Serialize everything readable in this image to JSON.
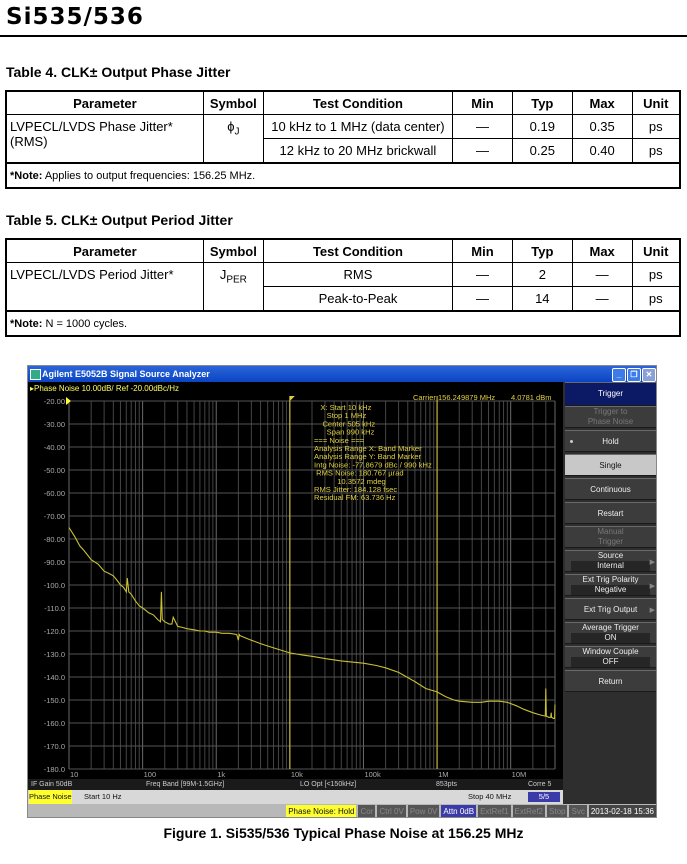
{
  "header": {
    "title": "Si535/536"
  },
  "table4": {
    "caption": "Table 4. CLK± Output Phase Jitter",
    "columns": [
      "Parameter",
      "Symbol",
      "Test Condition",
      "Min",
      "Typ",
      "Max",
      "Unit"
    ],
    "parameter": "LVPECL/LVDS Phase Jitter* (RMS)",
    "symbol": "ϕ",
    "symbol_sub": "J",
    "rows": [
      {
        "condition": "10 kHz to 1 MHz (data center)",
        "min": "—",
        "typ": "0.19",
        "max": "0.35",
        "unit": "ps"
      },
      {
        "condition": "12 kHz to 20 MHz brickwall",
        "min": "—",
        "typ": "0.25",
        "max": "0.40",
        "unit": "ps"
      }
    ],
    "note_label": "*Note:",
    "note": " Applies to output frequencies: 156.25 MHz."
  },
  "table5": {
    "caption": "Table 5. CLK± Output Period Jitter",
    "columns": [
      "Parameter",
      "Symbol",
      "Test Condition",
      "Min",
      "Typ",
      "Max",
      "Unit"
    ],
    "parameter": "LVPECL/LVDS Period Jitter*",
    "symbol": "J",
    "symbol_sub": "PER",
    "rows": [
      {
        "condition": "RMS",
        "min": "—",
        "typ": "2",
        "max": "—",
        "unit": "ps"
      },
      {
        "condition": "Peak-to-Peak",
        "min": "—",
        "typ": "14",
        "max": "—",
        "unit": "ps"
      }
    ],
    "note_label": "*Note:",
    "note": " N = 1000 cycles."
  },
  "analyzer": {
    "window_title": "Agilent E5052B Signal Source Analyzer",
    "window_buttons": [
      "minimize",
      "restore",
      "close"
    ],
    "trace_header": "Phase Noise 10.00dB/ Ref -20.00dBc/Hz",
    "carrier": "Carrier 156.249879 MHz",
    "carrier_power": "4.0781 dBm",
    "readout": [
      "   X: Start 10 kHz",
      "      Stop 1 MHz",
      "    Center 505 kHz",
      "      Span 990 kHz",
      "=== Noise ===",
      "Analysis Range X: Band Marker",
      "Analysis Range Y: Band Marker",
      "Intg Noise: -77.8679 dBc / 990 kHz",
      " RMS Noise: 180.767 µrad",
      "           10.3572 mdeg",
      "RMS Jitter: 184.128 fsec",
      "Residual FM: 63.736 Hz"
    ],
    "softkeys": [
      {
        "label": "Trigger",
        "type": "header"
      },
      {
        "label": "Trigger to",
        "label2": "Phase Noise",
        "type": "disabled"
      },
      {
        "label": "Hold",
        "type": "radio"
      },
      {
        "label": "Single",
        "type": "selected"
      },
      {
        "label": "Continuous",
        "type": "normal"
      },
      {
        "label": "Restart",
        "type": "normal"
      },
      {
        "label": "Manual",
        "label2": "Trigger",
        "type": "disabled"
      },
      {
        "label": "Source",
        "value": "Internal",
        "type": "value",
        "arrow": true
      },
      {
        "label": "Ext Trig Polarity",
        "value": "Negative",
        "type": "value",
        "arrow": true
      },
      {
        "label": "Ext Trig Output",
        "type": "normal",
        "arrow": true
      },
      {
        "label": "Average Trigger",
        "value": "ON",
        "type": "value"
      },
      {
        "label": "Window Couple",
        "value": "OFF",
        "type": "value"
      },
      {
        "label": "Return",
        "type": "normal"
      }
    ],
    "info_bar": [
      "IF Gain 50dB",
      "Freq Band [99M-1.5GHz]",
      "LO Opt [<150kHz]",
      "853pts",
      "Corre 5"
    ],
    "sweep_bar": {
      "mode": "Phase Noise",
      "start": "Start 10 Hz",
      "stop": "Stop 40 MHz",
      "page": "5/5"
    },
    "status_bar": {
      "state": "Phase Noise: Hold",
      "indicators": [
        "Cor",
        "Ctrl 0V",
        "Pow 0V",
        "Attn 0dB",
        "ExtRef1",
        "ExtRef2",
        "Stop",
        "Svc"
      ],
      "active_indicator": "Attn 0dB",
      "datetime": "2013-02-18 15:36"
    },
    "colors": {
      "trace": "#c8c030",
      "marker": "#e0d040",
      "grid": "#505050",
      "title_bar": "#1a55d0",
      "highlight": "#ffff30"
    }
  },
  "chart_data": {
    "type": "line",
    "title": "Phase Noise 10.00dB/ Ref -20.00dBc/Hz",
    "xscale": "log",
    "xlim": [
      10,
      40000000
    ],
    "ylim": [
      -180,
      -20
    ],
    "grid": true,
    "xtick_labels": [
      "10",
      "100",
      "1k",
      "10k",
      "100k",
      "1M",
      "10M"
    ],
    "xtick_values": [
      10,
      100,
      1000,
      10000,
      100000,
      1000000,
      10000000
    ],
    "ytick_labels": [
      "-20.00",
      "-30.00",
      "-40.00",
      "-50.00",
      "-60.00",
      "-70.00",
      "-80.00",
      "-90.00",
      "-100.0",
      "-110.0",
      "-120.0",
      "-130.0",
      "-140.0",
      "-150.0",
      "-160.0",
      "-170.0",
      "-180.0"
    ],
    "ytick_values": [
      -20,
      -30,
      -40,
      -50,
      -60,
      -70,
      -80,
      -90,
      -100,
      -110,
      -120,
      -130,
      -140,
      -150,
      -160,
      -170,
      -180
    ],
    "markers_x": [
      10000,
      1000000
    ],
    "series": [
      {
        "x": [
          10,
          12,
          14,
          16,
          20,
          25,
          30,
          35,
          40,
          45,
          50,
          55,
          60,
          62,
          65,
          70,
          80,
          90,
          100,
          110,
          120,
          140,
          160,
          175,
          180,
          185,
          200,
          230,
          250,
          260,
          300,
          350,
          400,
          500,
          600,
          700,
          800,
          1000,
          1200,
          1500,
          1900,
          2000,
          2050,
          2100,
          2500,
          3000,
          4000,
          5000,
          7000,
          10000,
          15000,
          20000,
          30000,
          50000,
          70000,
          100000,
          150000,
          200000,
          300000,
          500000,
          700000,
          1000000,
          1300000,
          1700000,
          2000000,
          3000000,
          4000000,
          5000000,
          7000000,
          9000000,
          12000000,
          15000000,
          20000000,
          25000000,
          29500000,
          30000000,
          30500000,
          33000000,
          35000000,
          35500000,
          36000000,
          38000000,
          39500000,
          40000000
        ],
        "y": [
          -75,
          -79,
          -83,
          -85,
          -89,
          -91,
          -94,
          -95,
          -96,
          -98,
          -100,
          -101,
          -103,
          -97,
          -103,
          -104,
          -107,
          -109,
          -110,
          -111,
          -112,
          -113,
          -115,
          -116,
          -103,
          -115,
          -116,
          -117,
          -117,
          -114,
          -118,
          -118.5,
          -119,
          -119.5,
          -120,
          -120,
          -120.5,
          -120.5,
          -121,
          -121,
          -121.5,
          -124,
          -121.5,
          -122,
          -123,
          -124,
          -125.5,
          -126.5,
          -128,
          -129.5,
          -130.5,
          -131,
          -132,
          -133,
          -133.5,
          -134,
          -135,
          -136,
          -138,
          -142,
          -145,
          -146.5,
          -148.5,
          -150,
          -150.5,
          -151,
          -151,
          -150.5,
          -150.5,
          -151,
          -152.5,
          -154,
          -155.5,
          -156.5,
          -157,
          -145,
          -157,
          -157.5,
          -157.5,
          -155.5,
          -157.5,
          -158,
          -158,
          -152
        ]
      }
    ]
  },
  "caption": "Figure 1. Si535/536 Typical Phase Noise at 156.25 MHz"
}
